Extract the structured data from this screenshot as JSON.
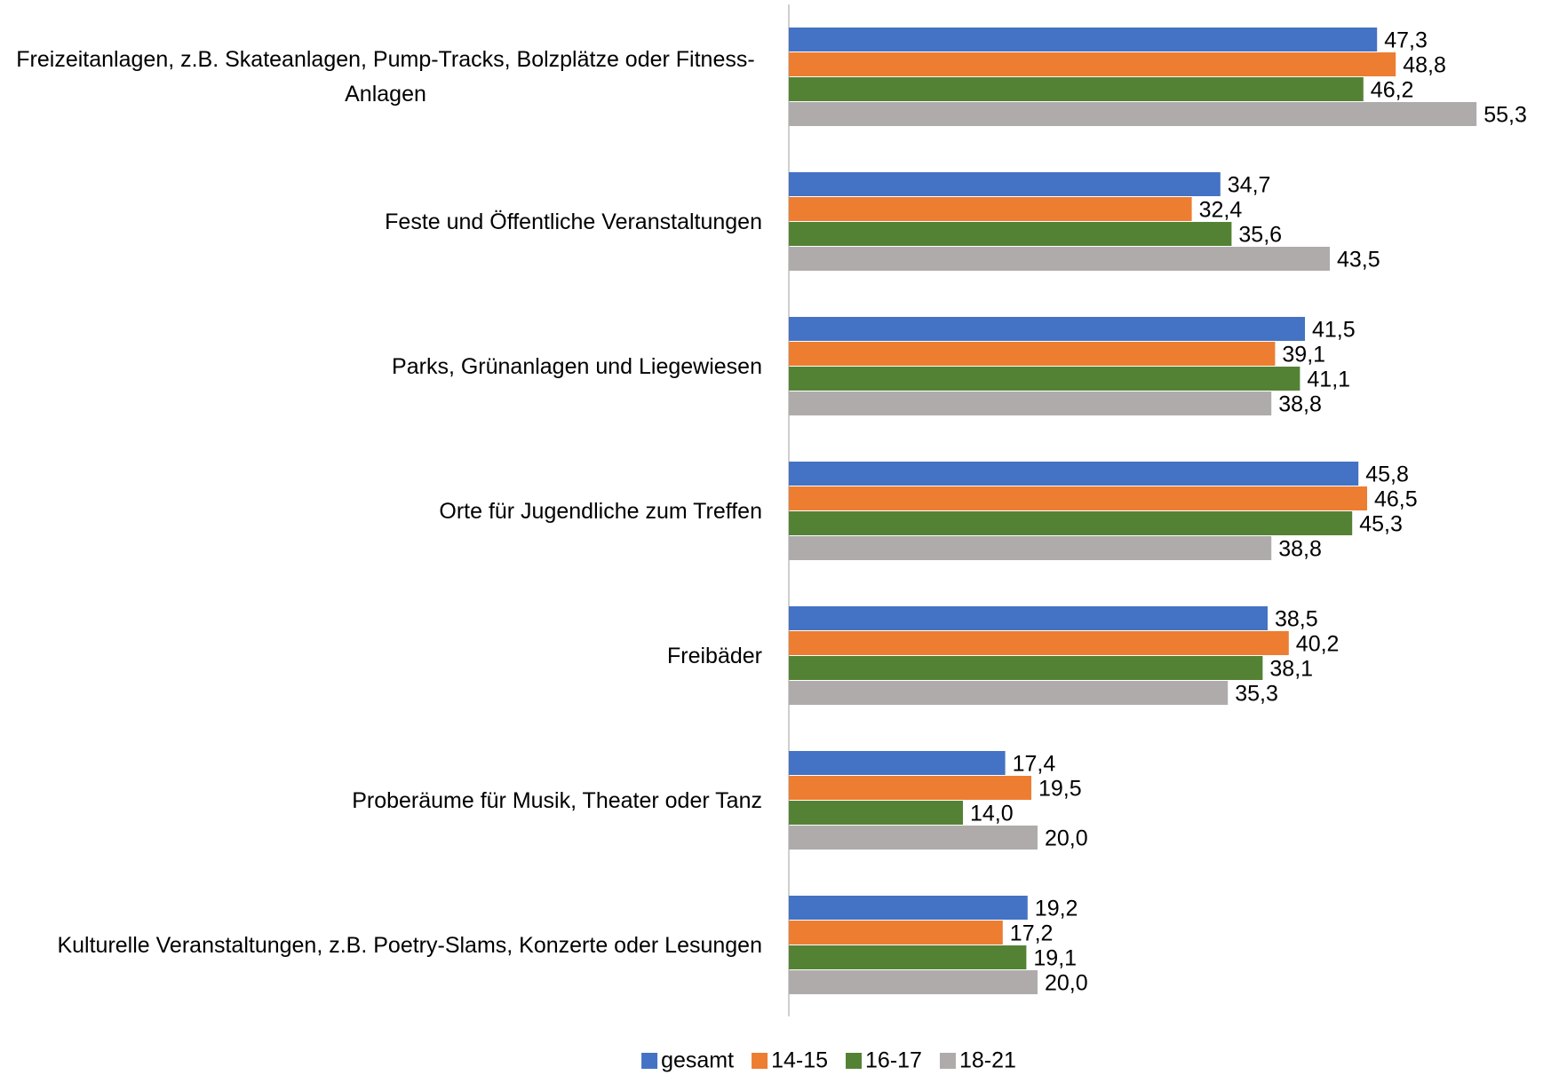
{
  "chart_data": {
    "type": "bar",
    "orientation": "horizontal",
    "categories": [
      "Freizeitanlagen, z.B. Skateanlagen, Pump-Tracks, Bolzplätze oder Fitness-Anlagen",
      "Feste und Öffentliche Veranstaltungen",
      "Parks, Grünanlagen und Liegewiesen",
      "Orte für Jugendliche zum Treffen",
      "Freibäder",
      "Proberäume für Musik, Theater oder Tanz",
      "Kulturelle Veranstaltungen, z.B. Poetry-Slams, Konzerte oder Lesungen"
    ],
    "series": [
      {
        "name": "gesamt",
        "color": "#4472c4",
        "values": [
          47.3,
          34.7,
          41.5,
          45.8,
          38.5,
          17.4,
          19.2
        ],
        "value_labels": [
          "47,3",
          "34,7",
          "41,5",
          "45,8",
          "38,5",
          "17,4",
          "19,2"
        ]
      },
      {
        "name": "14-15",
        "color": "#ed7d31",
        "values": [
          48.8,
          32.4,
          39.1,
          46.5,
          40.2,
          19.5,
          17.2
        ],
        "value_labels": [
          "48,8",
          "32,4",
          "39,1",
          "46,5",
          "40,2",
          "19,5",
          "17,2"
        ]
      },
      {
        "name": "16-17",
        "color": "#548235",
        "values": [
          46.2,
          35.6,
          41.1,
          45.3,
          38.1,
          14.0,
          19.1
        ],
        "value_labels": [
          "46,2",
          "35,6",
          "41,1",
          "45,3",
          "38,1",
          "14,0",
          "19,1"
        ]
      },
      {
        "name": "18-21",
        "color": "#afabab",
        "values": [
          55.3,
          43.5,
          38.8,
          38.8,
          35.3,
          20.0,
          20.0
        ],
        "value_labels": [
          "55,3",
          "43,5",
          "38,8",
          "38,8",
          "35,3",
          "20,0",
          "20,0"
        ]
      }
    ],
    "xlim": [
      0,
      60
    ],
    "legend": "bottom"
  }
}
